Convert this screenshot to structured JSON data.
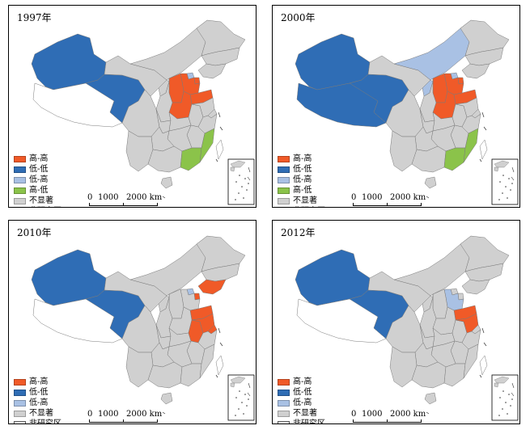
{
  "colors": {
    "high_high": "#f05a28",
    "low_low": "#2f6db5",
    "low_high": "#a9c1e4",
    "high_low": "#8bc34a",
    "not_significant": "#d0d0d0",
    "non_study_area": "#ffffff",
    "border": "#7a7a7a",
    "coast": "#333333"
  },
  "legend": {
    "high_high": "高-高",
    "low_low": "低-低",
    "low_high": "低-高",
    "high_low": "高-低",
    "not_significant": "不显著",
    "non_study_area": "非研究区"
  },
  "scale": {
    "label_0": "0",
    "label_1000": "1000",
    "label_2000": "2000 km"
  },
  "panels": [
    {
      "year": "1997年",
      "legend_keys": [
        "high_high",
        "low_low",
        "low_high",
        "high_low",
        "not_significant",
        "non_study_area"
      ],
      "classes": {
        "xinjiang": "low_low",
        "tibet": "non_study_area",
        "qinghai": "low_low",
        "gansu": "not_significant",
        "inner_mongolia": "not_significant",
        "heilongjiang": "not_significant",
        "jilin": "not_significant",
        "liaoning": "not_significant",
        "beijing": "low_high",
        "tianjin": "high_high",
        "hebei": "high_high",
        "shanxi": "high_high",
        "shandong": "high_high",
        "henan": "high_high",
        "ningxia": "not_significant",
        "shaanxi": "not_significant",
        "sichuan": "not_significant",
        "chongqing": "not_significant",
        "hubei": "not_significant",
        "anhui": "not_significant",
        "jiangsu": "not_significant",
        "shanghai": "not_significant",
        "zhejiang": "not_significant",
        "jiangxi": "not_significant",
        "hunan": "not_significant",
        "guizhou": "not_significant",
        "yunnan": "not_significant",
        "guangxi": "not_significant",
        "guangdong": "high_low",
        "fujian": "high_low",
        "hainan": "not_significant",
        "taiwan": "non_study_area"
      }
    },
    {
      "year": "2000年",
      "legend_keys": [
        "high_high",
        "low_low",
        "low_high",
        "high_low",
        "not_significant",
        "non_study_area"
      ],
      "classes": {
        "xinjiang": "low_low",
        "tibet": "low_low",
        "qinghai": "low_low",
        "gansu": "not_significant",
        "inner_mongolia": "low_high",
        "heilongjiang": "not_significant",
        "jilin": "not_significant",
        "liaoning": "not_significant",
        "beijing": "low_high",
        "tianjin": "high_high",
        "hebei": "high_high",
        "shanxi": "high_high",
        "shandong": "high_high",
        "henan": "high_high",
        "ningxia": "low_high",
        "shaanxi": "not_significant",
        "sichuan": "not_significant",
        "chongqing": "not_significant",
        "hubei": "not_significant",
        "anhui": "not_significant",
        "jiangsu": "not_significant",
        "shanghai": "not_significant",
        "zhejiang": "not_significant",
        "jiangxi": "not_significant",
        "hunan": "not_significant",
        "guizhou": "not_significant",
        "yunnan": "not_significant",
        "guangxi": "not_significant",
        "guangdong": "high_low",
        "fujian": "high_low",
        "hainan": "not_significant",
        "taiwan": "non_study_area"
      }
    },
    {
      "year": "2010年",
      "legend_keys": [
        "high_high",
        "low_low",
        "low_high",
        "not_significant",
        "non_study_area"
      ],
      "classes": {
        "xinjiang": "low_low",
        "tibet": "non_study_area",
        "qinghai": "low_low",
        "gansu": "not_significant",
        "inner_mongolia": "not_significant",
        "heilongjiang": "not_significant",
        "jilin": "not_significant",
        "liaoning": "high_high",
        "beijing": "low_high",
        "tianjin": "high_high",
        "hebei": "not_significant",
        "shanxi": "not_significant",
        "shandong": "high_high",
        "henan": "not_significant",
        "ningxia": "not_significant",
        "shaanxi": "not_significant",
        "sichuan": "not_significant",
        "chongqing": "not_significant",
        "hubei": "not_significant",
        "anhui": "high_high",
        "jiangsu": "high_high",
        "shanghai": "high_high",
        "zhejiang": "not_significant",
        "jiangxi": "not_significant",
        "hunan": "not_significant",
        "guizhou": "not_significant",
        "yunnan": "not_significant",
        "guangxi": "not_significant",
        "guangdong": "not_significant",
        "fujian": "not_significant",
        "hainan": "not_significant",
        "taiwan": "non_study_area"
      }
    },
    {
      "year": "2012年",
      "legend_keys": [
        "high_high",
        "low_low",
        "low_high",
        "not_significant",
        "non_study_area"
      ],
      "classes": {
        "xinjiang": "low_low",
        "tibet": "non_study_area",
        "qinghai": "low_low",
        "gansu": "not_significant",
        "inner_mongolia": "not_significant",
        "heilongjiang": "not_significant",
        "jilin": "not_significant",
        "liaoning": "not_significant",
        "beijing": "not_significant",
        "tianjin": "not_significant",
        "hebei": "low_high",
        "shanxi": "not_significant",
        "shandong": "high_high",
        "henan": "not_significant",
        "ningxia": "not_significant",
        "shaanxi": "not_significant",
        "sichuan": "not_significant",
        "chongqing": "not_significant",
        "hubei": "not_significant",
        "anhui": "not_significant",
        "jiangsu": "high_high",
        "shanghai": "not_significant",
        "zhejiang": "not_significant",
        "jiangxi": "not_significant",
        "hunan": "not_significant",
        "guizhou": "not_significant",
        "yunnan": "not_significant",
        "guangxi": "not_significant",
        "guangdong": "not_significant",
        "fujian": "not_significant",
        "hainan": "not_significant",
        "taiwan": "non_study_area"
      }
    }
  ]
}
